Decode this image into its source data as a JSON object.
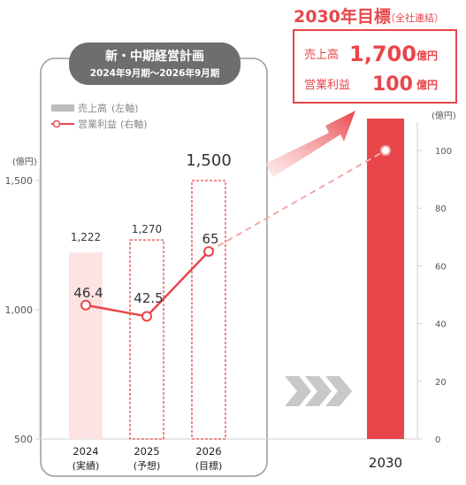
{
  "plan_title": "新・中期経営計画",
  "plan_period": "2024年9月期〜2026年9月期",
  "target": {
    "title": "2030年目標",
    "title_note": "（全社連結）",
    "sales_label": "売上高",
    "sales_value": "1,700",
    "sales_unit": "億円",
    "profit_label": "営業利益",
    "profit_value": "100",
    "profit_unit": "億円"
  },
  "colors": {
    "accent": "#e8464a",
    "bar_light": "#fde3e3",
    "arrow": "#c0c0c0",
    "panel_border": "#9a9a9a",
    "badge_bg": "#6e6e6e"
  },
  "chart_data": {
    "type": "bar+line",
    "categories": [
      "2024",
      "2025",
      "2026",
      "2030"
    ],
    "category_notes": [
      "(実績)",
      "(予想)",
      "(目標)",
      ""
    ],
    "left_axis": {
      "unit": "(億円)",
      "ylim": [
        500,
        1600
      ],
      "ticks": [
        "500",
        "1,000",
        "1,500"
      ],
      "tick_values": [
        500,
        1000,
        1500
      ]
    },
    "right_axis": {
      "unit": "(億円)",
      "ylim": [
        0,
        110
      ],
      "ticks": [
        "0",
        "20",
        "40",
        "60",
        "80",
        "100"
      ],
      "tick_values": [
        0,
        20,
        40,
        60,
        80,
        100
      ]
    },
    "legend": [
      {
        "name": "売上高",
        "axis": "(左軸)"
      },
      {
        "name": "営業利益",
        "axis": "(右軸)"
      }
    ],
    "series": [
      {
        "name": "売上高",
        "axis": "left",
        "values": [
          1222,
          1270,
          1500,
          1700
        ],
        "labels": [
          "1,222",
          "1,270",
          "1,500",
          ""
        ]
      },
      {
        "name": "営業利益",
        "axis": "right",
        "values": [
          46.4,
          42.5,
          65,
          100
        ],
        "labels": [
          "46.4",
          "42.5",
          "65",
          ""
        ]
      }
    ]
  }
}
